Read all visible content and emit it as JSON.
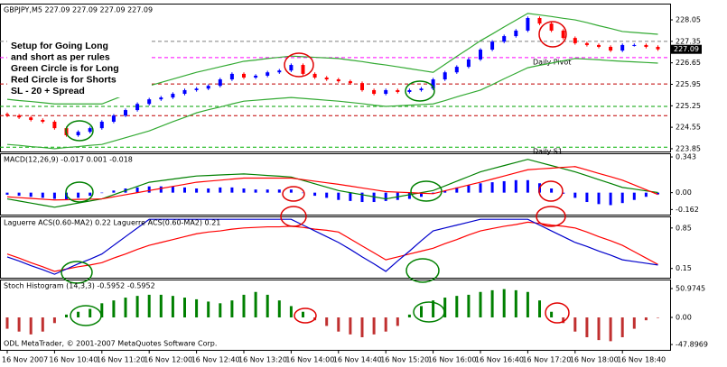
{
  "chart_data": [
    {
      "type": "candlestick",
      "title": "GBPJPY,M5  227.09 227.09 227.09 227.09",
      "categories": [
        "16 Nov 2007",
        null,
        null,
        null,
        "16 Nov 10:40",
        null,
        null,
        null,
        "16 Nov 11:20",
        null,
        null,
        null,
        "16 Nov 12:00",
        null,
        null,
        null,
        "16 Nov 12:40",
        null,
        null,
        null,
        "16 Nov 13:20",
        null,
        null,
        null,
        "16 Nov 14:00",
        null,
        null,
        null,
        "16 Nov 14:40",
        null,
        null,
        null,
        "16 Nov 15:20",
        null,
        null,
        null,
        "16 Nov 16:00",
        null,
        null,
        null,
        "16 Nov 16:40",
        null,
        null,
        null,
        "16 Nov 17:20",
        null,
        null,
        null,
        "16 Nov 18:00",
        null,
        null,
        null,
        "16 Nov 18:40",
        null,
        null,
        null
      ],
      "open": [
        224.98,
        224.93,
        224.87,
        224.79,
        224.73,
        224.52,
        224.29,
        224.4,
        224.52,
        224.73,
        224.93,
        225.11,
        225.31,
        225.46,
        225.52,
        225.64,
        225.76,
        225.81,
        225.9,
        226.11,
        226.29,
        226.17,
        226.23,
        226.34,
        226.4,
        226.58,
        226.29,
        226.17,
        226.11,
        226.05,
        225.99,
        225.76,
        225.64,
        225.76,
        225.7,
        225.76,
        225.81,
        226.11,
        226.34,
        226.52,
        226.76,
        227.08,
        227.34,
        227.52,
        227.7,
        228.11,
        227.93,
        227.7,
        227.46,
        227.29,
        227.23,
        227.17,
        227.05,
        227.23,
        227.23,
        227.17
      ],
      "high": [
        225.03,
        224.98,
        224.92,
        224.84,
        224.78,
        224.57,
        224.45,
        224.57,
        224.78,
        224.98,
        225.16,
        225.36,
        225.51,
        225.57,
        225.69,
        225.81,
        225.86,
        225.95,
        226.16,
        226.34,
        226.34,
        226.28,
        226.39,
        226.45,
        226.63,
        226.63,
        226.34,
        226.22,
        226.16,
        226.1,
        226.04,
        225.81,
        225.81,
        225.81,
        225.81,
        225.86,
        226.16,
        226.39,
        226.57,
        226.81,
        227.13,
        227.39,
        227.57,
        227.75,
        228.16,
        228.16,
        227.98,
        227.75,
        227.51,
        227.34,
        227.28,
        227.22,
        227.28,
        227.28,
        227.28,
        227.22
      ],
      "low": [
        224.88,
        224.82,
        224.74,
        224.68,
        224.47,
        224.24,
        224.24,
        224.35,
        224.47,
        224.68,
        224.88,
        225.06,
        225.26,
        225.41,
        225.47,
        225.59,
        225.71,
        225.76,
        225.85,
        226.06,
        226.12,
        226.12,
        226.18,
        226.29,
        226.35,
        226.24,
        226.12,
        226.06,
        226.0,
        225.94,
        225.71,
        225.59,
        225.59,
        225.65,
        225.65,
        225.71,
        225.76,
        226.06,
        226.29,
        226.47,
        226.71,
        227.03,
        227.29,
        227.47,
        227.65,
        227.88,
        227.65,
        227.41,
        227.24,
        227.18,
        227.12,
        227.0,
        227.0,
        227.18,
        227.12,
        227.04
      ],
      "close": [
        224.93,
        224.87,
        224.79,
        224.73,
        224.52,
        224.29,
        224.4,
        224.52,
        224.73,
        224.93,
        225.11,
        225.31,
        225.46,
        225.52,
        225.64,
        225.76,
        225.81,
        225.9,
        226.11,
        226.29,
        226.17,
        226.23,
        226.34,
        226.4,
        226.58,
        226.29,
        226.17,
        226.11,
        226.05,
        225.99,
        225.76,
        225.64,
        225.76,
        225.7,
        225.76,
        225.81,
        226.11,
        226.34,
        226.52,
        226.76,
        227.08,
        227.34,
        227.52,
        227.7,
        228.11,
        227.93,
        227.7,
        227.46,
        227.29,
        227.23,
        227.17,
        227.05,
        227.23,
        227.23,
        227.17,
        227.09
      ],
      "up_color": "#0000ff",
      "down_color": "#ff0000",
      "series": [
        {
          "color": "#33aa33",
          "values": [
            225.46,
            225.42,
            225.39,
            225.35,
            225.31,
            225.31,
            225.31,
            225.31,
            225.31,
            225.46,
            225.61,
            225.75,
            225.9,
            226.01,
            226.12,
            226.23,
            226.34,
            226.43,
            226.52,
            226.61,
            226.7,
            226.74,
            226.79,
            226.83,
            226.87,
            226.85,
            226.83,
            226.81,
            226.79,
            226.74,
            226.69,
            226.63,
            226.58,
            226.52,
            226.46,
            226.4,
            226.34,
            226.6,
            226.86,
            227.11,
            227.37,
            227.59,
            227.82,
            228.04,
            228.26,
            228.21,
            228.16,
            228.1,
            228.05,
            227.96,
            227.86,
            227.77,
            227.67,
            227.64,
            227.61,
            227.58
          ]
        },
        {
          "color": "#33aa33",
          "values": [
            223.99,
            223.96,
            223.92,
            223.89,
            223.85,
            223.89,
            223.92,
            223.96,
            223.99,
            224.1,
            224.21,
            224.32,
            224.43,
            224.58,
            224.73,
            224.87,
            225.02,
            225.12,
            225.21,
            225.31,
            225.4,
            225.43,
            225.46,
            225.49,
            225.52,
            225.49,
            225.46,
            225.43,
            225.4,
            225.36,
            225.32,
            225.27,
            225.23,
            225.25,
            225.27,
            225.29,
            225.31,
            225.42,
            225.54,
            225.65,
            225.76,
            225.94,
            226.13,
            226.31,
            226.49,
            226.57,
            226.64,
            226.72,
            226.79,
            226.77,
            226.75,
            226.72,
            226.7,
            226.68,
            226.66,
            226.64
          ]
        }
      ],
      "levels": [
        {
          "value": 226.82,
          "color": "#ff00ff",
          "label": "Daily Pivot"
        },
        {
          "value": 223.9,
          "color": "#00b000",
          "label": "Daily S1"
        },
        {
          "value": 225.96,
          "color": "#c00000"
        },
        {
          "value": 224.93,
          "color": "#c00000"
        },
        {
          "value": 225.23,
          "color": "#00a000"
        },
        {
          "value": 227.35,
          "color": "#808080"
        }
      ],
      "annotation": [
        "Setup for Going Long",
        "and short as per rules",
        "Green Circle is for Long",
        "Red Circle is for Shorts",
        "SL - 20 + Spread"
      ],
      "ylim": [
        223.76,
        228.58
      ],
      "yticks": [
        228.05,
        227.35,
        226.65,
        225.95,
        225.25,
        224.55,
        223.85
      ]
    },
    {
      "type": "macd",
      "title": "MACD(12,26,9) -0.017 0.001 -0.018",
      "values": [
        -0.02,
        -0.03,
        -0.04,
        -0.05,
        -0.06,
        -0.07,
        -0.05,
        -0.03,
        0.0,
        0.02,
        0.04,
        0.05,
        0.06,
        0.06,
        0.06,
        0.05,
        0.04,
        0.04,
        0.05,
        0.05,
        0.04,
        0.03,
        0.03,
        0.03,
        0.03,
        0.0,
        -0.03,
        -0.05,
        -0.07,
        -0.08,
        -0.09,
        -0.09,
        -0.08,
        -0.07,
        -0.06,
        -0.04,
        -0.01,
        0.02,
        0.05,
        0.07,
        0.09,
        0.1,
        0.11,
        0.12,
        0.12,
        0.09,
        0.04,
        -0.01,
        -0.05,
        -0.09,
        -0.11,
        -0.12,
        -0.1,
        -0.07,
        -0.04,
        -0.017
      ],
      "color": "#0000ff",
      "series": [
        {
          "color": "#008000",
          "values": [
            -0.06,
            -0.08,
            -0.1,
            -0.12,
            -0.14,
            -0.12,
            -0.1,
            -0.08,
            -0.06,
            -0.02,
            0.02,
            0.06,
            0.1,
            0.115,
            0.13,
            0.145,
            0.16,
            0.165,
            0.17,
            0.175,
            0.18,
            0.173,
            0.165,
            0.158,
            0.15,
            0.118,
            0.085,
            0.053,
            0.02,
            0.0,
            -0.02,
            -0.04,
            -0.06,
            -0.04,
            -0.02,
            0.0,
            0.02,
            0.065,
            0.11,
            0.155,
            0.2,
            0.23,
            0.26,
            0.29,
            0.32,
            0.29,
            0.26,
            0.23,
            0.2,
            0.163,
            0.125,
            0.088,
            0.05,
            0.034,
            0.017,
            0.001
          ]
        },
        {
          "color": "#ff0000",
          "values": [
            -0.04,
            -0.048,
            -0.055,
            -0.063,
            -0.07,
            -0.068,
            -0.065,
            -0.063,
            -0.06,
            -0.04,
            -0.02,
            0.0,
            0.02,
            0.04,
            0.06,
            0.08,
            0.1,
            0.11,
            0.12,
            0.13,
            0.14,
            0.14,
            0.14,
            0.14,
            0.14,
            0.125,
            0.11,
            0.095,
            0.08,
            0.063,
            0.045,
            0.028,
            0.01,
            0.005,
            0.0,
            -0.005,
            -0.01,
            0.018,
            0.045,
            0.073,
            0.1,
            0.13,
            0.16,
            0.19,
            0.22,
            0.228,
            0.235,
            0.243,
            0.25,
            0.218,
            0.185,
            0.153,
            0.12,
            0.074,
            0.028,
            -0.018
          ]
        }
      ],
      "ylim": [
        -0.211,
        0.378
      ],
      "yticks": [
        0.343,
        {
          "value": 0,
          "label": "0.00"
        },
        -0.162
      ]
    },
    {
      "type": "line",
      "title": "Laguerre ACS(0.60-MA2) 0.22  Laguerre ACS(0.60-MA2) 0.21",
      "series": [
        {
          "color": "#ff0000",
          "values": [
            0.4,
            0.33,
            0.25,
            0.18,
            0.1,
            0.14,
            0.18,
            0.21,
            0.25,
            0.33,
            0.4,
            0.48,
            0.55,
            0.6,
            0.65,
            0.7,
            0.75,
            0.78,
            0.8,
            0.83,
            0.85,
            0.86,
            0.87,
            0.87,
            0.88,
            0.86,
            0.83,
            0.81,
            0.78,
            0.66,
            0.54,
            0.42,
            0.3,
            0.35,
            0.4,
            0.45,
            0.5,
            0.58,
            0.65,
            0.73,
            0.8,
            0.84,
            0.88,
            0.91,
            0.95,
            0.93,
            0.9,
            0.88,
            0.85,
            0.78,
            0.7,
            0.63,
            0.55,
            0.44,
            0.33,
            0.22
          ]
        },
        {
          "color": "#0000cc",
          "values": [
            0.35,
            0.28,
            0.2,
            0.13,
            0.05,
            0.14,
            0.23,
            0.31,
            0.4,
            0.55,
            0.7,
            0.85,
            1.0,
            1,
            1,
            1,
            1,
            1,
            1,
            1,
            1,
            1,
            1,
            1,
            1,
            0.9,
            0.8,
            0.7,
            0.6,
            0.48,
            0.35,
            0.23,
            0.1,
            0.28,
            0.45,
            0.63,
            0.8,
            0.85,
            0.9,
            0.95,
            1.0,
            1,
            1,
            1,
            1,
            0.9,
            0.8,
            0.7,
            0.6,
            0.53,
            0.45,
            0.38,
            0.3,
            0.27,
            0.24,
            0.21
          ]
        }
      ],
      "ylim": [
        -0.01,
        1.05
      ],
      "yticks": [
        0.85,
        0.15
      ]
    },
    {
      "type": "bar",
      "title": "Stoch Histogram (14,3,3) -0.5952 -0.5952",
      "values": [
        -20,
        -25,
        -30,
        -25,
        -10,
        5,
        10,
        15,
        25,
        30,
        35,
        38,
        40,
        40,
        38,
        35,
        32,
        28,
        25,
        30,
        40,
        45,
        40,
        30,
        20,
        10,
        -5,
        -15,
        -25,
        -30,
        -35,
        -30,
        -25,
        -15,
        5,
        20,
        30,
        35,
        38,
        40,
        45,
        48,
        50,
        48,
        45,
        30,
        10,
        -10,
        -25,
        -35,
        -40,
        -42,
        -35,
        -20,
        -5,
        -0.5952
      ],
      "pos_color": "#008000",
      "neg_color": "#c03030",
      "note": "ODL MetaTrader, © 2001-2007 MetaQuotes Software Corp.",
      "ylim": [
        -57.3,
        66.9
      ],
      "yticks": [
        50.9745,
        {
          "value": 0,
          "label": "0.00"
        },
        -47.8969
      ]
    }
  ]
}
